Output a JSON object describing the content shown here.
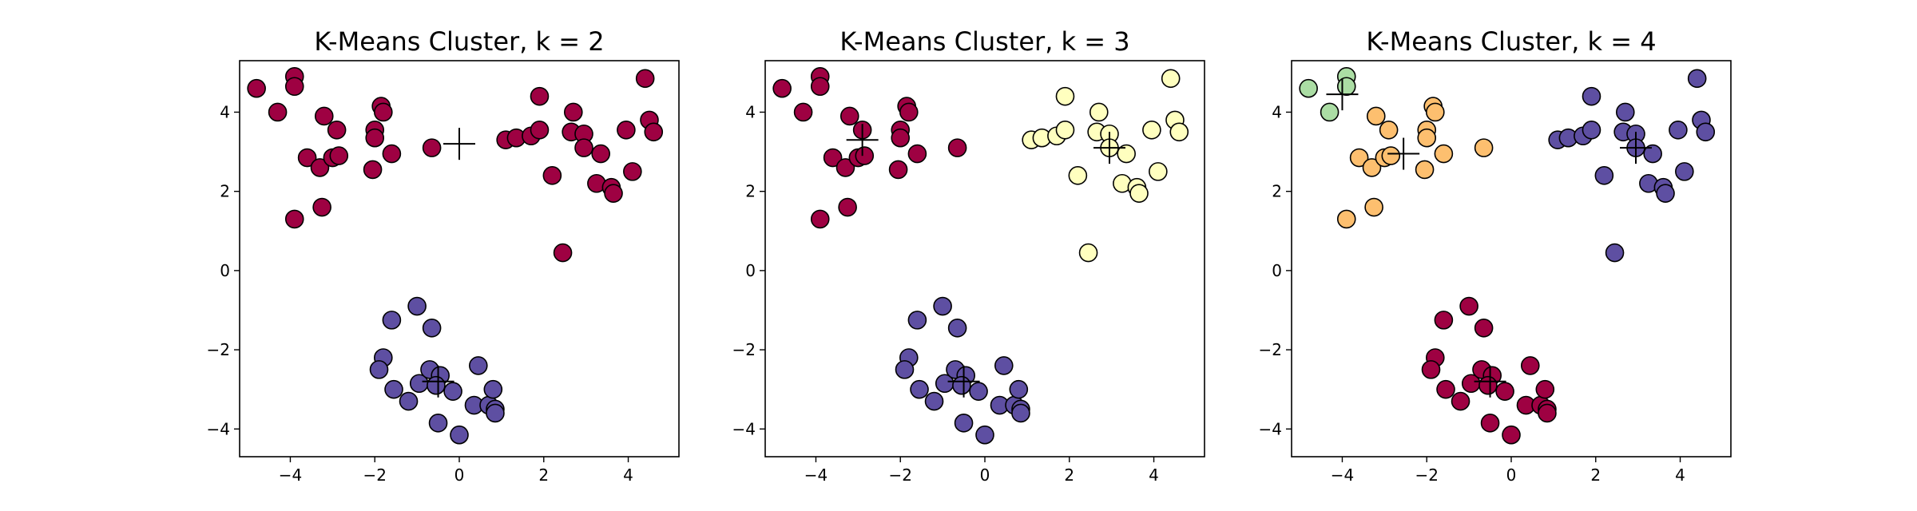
{
  "chart_data": [
    {
      "type": "scatter",
      "title": "K-Means Cluster, k = 2",
      "xlabel": "",
      "ylabel": "",
      "xlim": [
        -5.2,
        5.2
      ],
      "ylim": [
        -4.7,
        5.3
      ],
      "xticks": [
        -4,
        -2,
        0,
        2,
        4
      ],
      "yticks": [
        -4,
        -2,
        0,
        2,
        4
      ],
      "xtick_labels": [
        "−4",
        "−2",
        "0",
        "2",
        "4"
      ],
      "ytick_labels": [
        "−4",
        "−2",
        "0",
        "2",
        "4"
      ],
      "grid": false,
      "cluster_colors": [
        "#9e0142",
        "#5e4fa2"
      ],
      "series": [
        {
          "points": [
            [
              -4.8,
              4.6
            ],
            [
              -4.3,
              4.0
            ],
            [
              -3.9,
              4.9
            ],
            [
              -3.9,
              4.65
            ],
            [
              -3.2,
              3.9
            ],
            [
              -3.6,
              2.85
            ],
            [
              -3.3,
              2.6
            ],
            [
              -3.0,
              2.85
            ],
            [
              -2.85,
              2.9
            ],
            [
              -2.9,
              3.55
            ],
            [
              -2.0,
              3.55
            ],
            [
              -1.85,
              4.15
            ],
            [
              -1.8,
              4.0
            ],
            [
              -2.0,
              3.35
            ],
            [
              -1.6,
              2.95
            ],
            [
              -2.05,
              2.55
            ],
            [
              -3.25,
              1.6
            ],
            [
              -3.9,
              1.3
            ],
            [
              -0.65,
              3.1
            ],
            [
              1.1,
              3.3
            ],
            [
              1.35,
              3.35
            ],
            [
              1.7,
              3.4
            ],
            [
              1.9,
              4.4
            ],
            [
              1.9,
              3.55
            ],
            [
              2.2,
              2.4
            ],
            [
              2.65,
              3.5
            ],
            [
              2.7,
              4.0
            ],
            [
              2.95,
              3.45
            ],
            [
              2.95,
              3.1
            ],
            [
              3.25,
              2.2
            ],
            [
              3.35,
              2.95
            ],
            [
              3.6,
              2.1
            ],
            [
              3.65,
              1.95
            ],
            [
              3.95,
              3.55
            ],
            [
              4.1,
              2.5
            ],
            [
              4.4,
              4.85
            ],
            [
              4.5,
              3.8
            ],
            [
              4.6,
              3.5
            ],
            [
              2.45,
              0.45
            ]
          ]
        },
        {
          "points": [
            [
              -1.0,
              -0.9
            ],
            [
              -0.65,
              -1.45
            ],
            [
              -1.6,
              -1.25
            ],
            [
              -1.8,
              -2.2
            ],
            [
              -1.9,
              -2.5
            ],
            [
              -1.55,
              -3.0
            ],
            [
              -1.2,
              -3.3
            ],
            [
              -0.95,
              -2.85
            ],
            [
              -0.7,
              -2.5
            ],
            [
              -0.45,
              -2.65
            ],
            [
              -0.55,
              -2.9
            ],
            [
              -0.15,
              -3.05
            ],
            [
              0.45,
              -2.4
            ],
            [
              0.35,
              -3.4
            ],
            [
              0.7,
              -3.4
            ],
            [
              0.8,
              -3.0
            ],
            [
              0.85,
              -3.5
            ],
            [
              0.85,
              -3.6
            ],
            [
              -0.5,
              -3.85
            ],
            [
              0.0,
              -4.15
            ]
          ]
        }
      ],
      "centroids": [
        [
          0.0,
          3.2
        ],
        [
          -0.5,
          -2.8
        ]
      ]
    },
    {
      "type": "scatter",
      "title": "K-Means Cluster, k = 3",
      "xlabel": "",
      "ylabel": "",
      "xlim": [
        -5.2,
        5.2
      ],
      "ylim": [
        -4.7,
        5.3
      ],
      "xticks": [
        -4,
        -2,
        0,
        2,
        4
      ],
      "yticks": [
        -4,
        -2,
        0,
        2,
        4
      ],
      "xtick_labels": [
        "−4",
        "−2",
        "0",
        "2",
        "4"
      ],
      "ytick_labels": [
        "−4",
        "−2",
        "0",
        "2",
        "4"
      ],
      "grid": false,
      "cluster_colors": [
        "#9e0142",
        "#5e4fa2",
        "#ffffbf"
      ],
      "series": [
        {
          "points": [
            [
              -4.8,
              4.6
            ],
            [
              -4.3,
              4.0
            ],
            [
              -3.9,
              4.9
            ],
            [
              -3.9,
              4.65
            ],
            [
              -3.2,
              3.9
            ],
            [
              -3.6,
              2.85
            ],
            [
              -3.3,
              2.6
            ],
            [
              -3.0,
              2.85
            ],
            [
              -2.85,
              2.9
            ],
            [
              -2.9,
              3.55
            ],
            [
              -2.0,
              3.55
            ],
            [
              -1.85,
              4.15
            ],
            [
              -1.8,
              4.0
            ],
            [
              -2.0,
              3.35
            ],
            [
              -1.6,
              2.95
            ],
            [
              -2.05,
              2.55
            ],
            [
              -3.25,
              1.6
            ],
            [
              -3.9,
              1.3
            ],
            [
              -0.65,
              3.1
            ]
          ]
        },
        {
          "points": [
            [
              -1.0,
              -0.9
            ],
            [
              -0.65,
              -1.45
            ],
            [
              -1.6,
              -1.25
            ],
            [
              -1.8,
              -2.2
            ],
            [
              -1.9,
              -2.5
            ],
            [
              -1.55,
              -3.0
            ],
            [
              -1.2,
              -3.3
            ],
            [
              -0.95,
              -2.85
            ],
            [
              -0.7,
              -2.5
            ],
            [
              -0.45,
              -2.65
            ],
            [
              -0.55,
              -2.9
            ],
            [
              -0.15,
              -3.05
            ],
            [
              0.45,
              -2.4
            ],
            [
              0.35,
              -3.4
            ],
            [
              0.7,
              -3.4
            ],
            [
              0.8,
              -3.0
            ],
            [
              0.85,
              -3.5
            ],
            [
              0.85,
              -3.6
            ],
            [
              -0.5,
              -3.85
            ],
            [
              0.0,
              -4.15
            ]
          ]
        },
        {
          "points": [
            [
              1.1,
              3.3
            ],
            [
              1.35,
              3.35
            ],
            [
              1.7,
              3.4
            ],
            [
              1.9,
              4.4
            ],
            [
              1.9,
              3.55
            ],
            [
              2.2,
              2.4
            ],
            [
              2.65,
              3.5
            ],
            [
              2.7,
              4.0
            ],
            [
              2.95,
              3.45
            ],
            [
              2.95,
              3.1
            ],
            [
              3.25,
              2.2
            ],
            [
              3.35,
              2.95
            ],
            [
              3.6,
              2.1
            ],
            [
              3.65,
              1.95
            ],
            [
              3.95,
              3.55
            ],
            [
              4.1,
              2.5
            ],
            [
              4.4,
              4.85
            ],
            [
              4.5,
              3.8
            ],
            [
              4.6,
              3.5
            ],
            [
              2.45,
              0.45
            ]
          ]
        }
      ],
      "centroids": [
        [
          -2.9,
          3.3
        ],
        [
          -0.5,
          -2.8
        ],
        [
          2.95,
          3.1
        ]
      ]
    },
    {
      "type": "scatter",
      "title": "K-Means Cluster, k = 4",
      "xlabel": "",
      "ylabel": "",
      "xlim": [
        -5.2,
        5.2
      ],
      "ylim": [
        -4.7,
        5.3
      ],
      "xticks": [
        -4,
        -2,
        0,
        2,
        4
      ],
      "yticks": [
        -4,
        -2,
        0,
        2,
        4
      ],
      "xtick_labels": [
        "−4",
        "−2",
        "0",
        "2",
        "4"
      ],
      "ytick_labels": [
        "−4",
        "−2",
        "0",
        "2",
        "4"
      ],
      "grid": false,
      "cluster_colors": [
        "#9e0142",
        "#5e4fa2",
        "#fdbf6f",
        "#abdda4"
      ],
      "series": [
        {
          "points": [
            [
              -1.0,
              -0.9
            ],
            [
              -0.65,
              -1.45
            ],
            [
              -1.6,
              -1.25
            ],
            [
              -1.8,
              -2.2
            ],
            [
              -1.9,
              -2.5
            ],
            [
              -1.55,
              -3.0
            ],
            [
              -1.2,
              -3.3
            ],
            [
              -0.95,
              -2.85
            ],
            [
              -0.7,
              -2.5
            ],
            [
              -0.45,
              -2.65
            ],
            [
              -0.55,
              -2.9
            ],
            [
              -0.15,
              -3.05
            ],
            [
              0.45,
              -2.4
            ],
            [
              0.35,
              -3.4
            ],
            [
              0.7,
              -3.4
            ],
            [
              0.8,
              -3.0
            ],
            [
              0.85,
              -3.5
            ],
            [
              0.85,
              -3.6
            ],
            [
              -0.5,
              -3.85
            ],
            [
              0.0,
              -4.15
            ]
          ]
        },
        {
          "points": [
            [
              1.1,
              3.3
            ],
            [
              1.35,
              3.35
            ],
            [
              1.7,
              3.4
            ],
            [
              1.9,
              4.4
            ],
            [
              1.9,
              3.55
            ],
            [
              2.2,
              2.4
            ],
            [
              2.65,
              3.5
            ],
            [
              2.7,
              4.0
            ],
            [
              2.95,
              3.45
            ],
            [
              2.95,
              3.1
            ],
            [
              3.25,
              2.2
            ],
            [
              3.35,
              2.95
            ],
            [
              3.6,
              2.1
            ],
            [
              3.65,
              1.95
            ],
            [
              3.95,
              3.55
            ],
            [
              4.1,
              2.5
            ],
            [
              4.4,
              4.85
            ],
            [
              4.5,
              3.8
            ],
            [
              4.6,
              3.5
            ],
            [
              2.45,
              0.45
            ]
          ]
        },
        {
          "points": [
            [
              -3.2,
              3.9
            ],
            [
              -3.6,
              2.85
            ],
            [
              -3.3,
              2.6
            ],
            [
              -3.0,
              2.85
            ],
            [
              -2.85,
              2.9
            ],
            [
              -2.9,
              3.55
            ],
            [
              -2.0,
              3.55
            ],
            [
              -1.85,
              4.15
            ],
            [
              -1.8,
              4.0
            ],
            [
              -2.0,
              3.35
            ],
            [
              -1.6,
              2.95
            ],
            [
              -2.05,
              2.55
            ],
            [
              -3.25,
              1.6
            ],
            [
              -3.9,
              1.3
            ],
            [
              -0.65,
              3.1
            ]
          ]
        },
        {
          "points": [
            [
              -4.8,
              4.6
            ],
            [
              -4.3,
              4.0
            ],
            [
              -3.9,
              4.9
            ],
            [
              -3.9,
              4.65
            ]
          ]
        }
      ],
      "centroids": [
        [
          -0.5,
          -2.8
        ],
        [
          2.95,
          3.1
        ],
        [
          -2.55,
          2.95
        ],
        [
          -4.0,
          4.45
        ]
      ]
    }
  ]
}
